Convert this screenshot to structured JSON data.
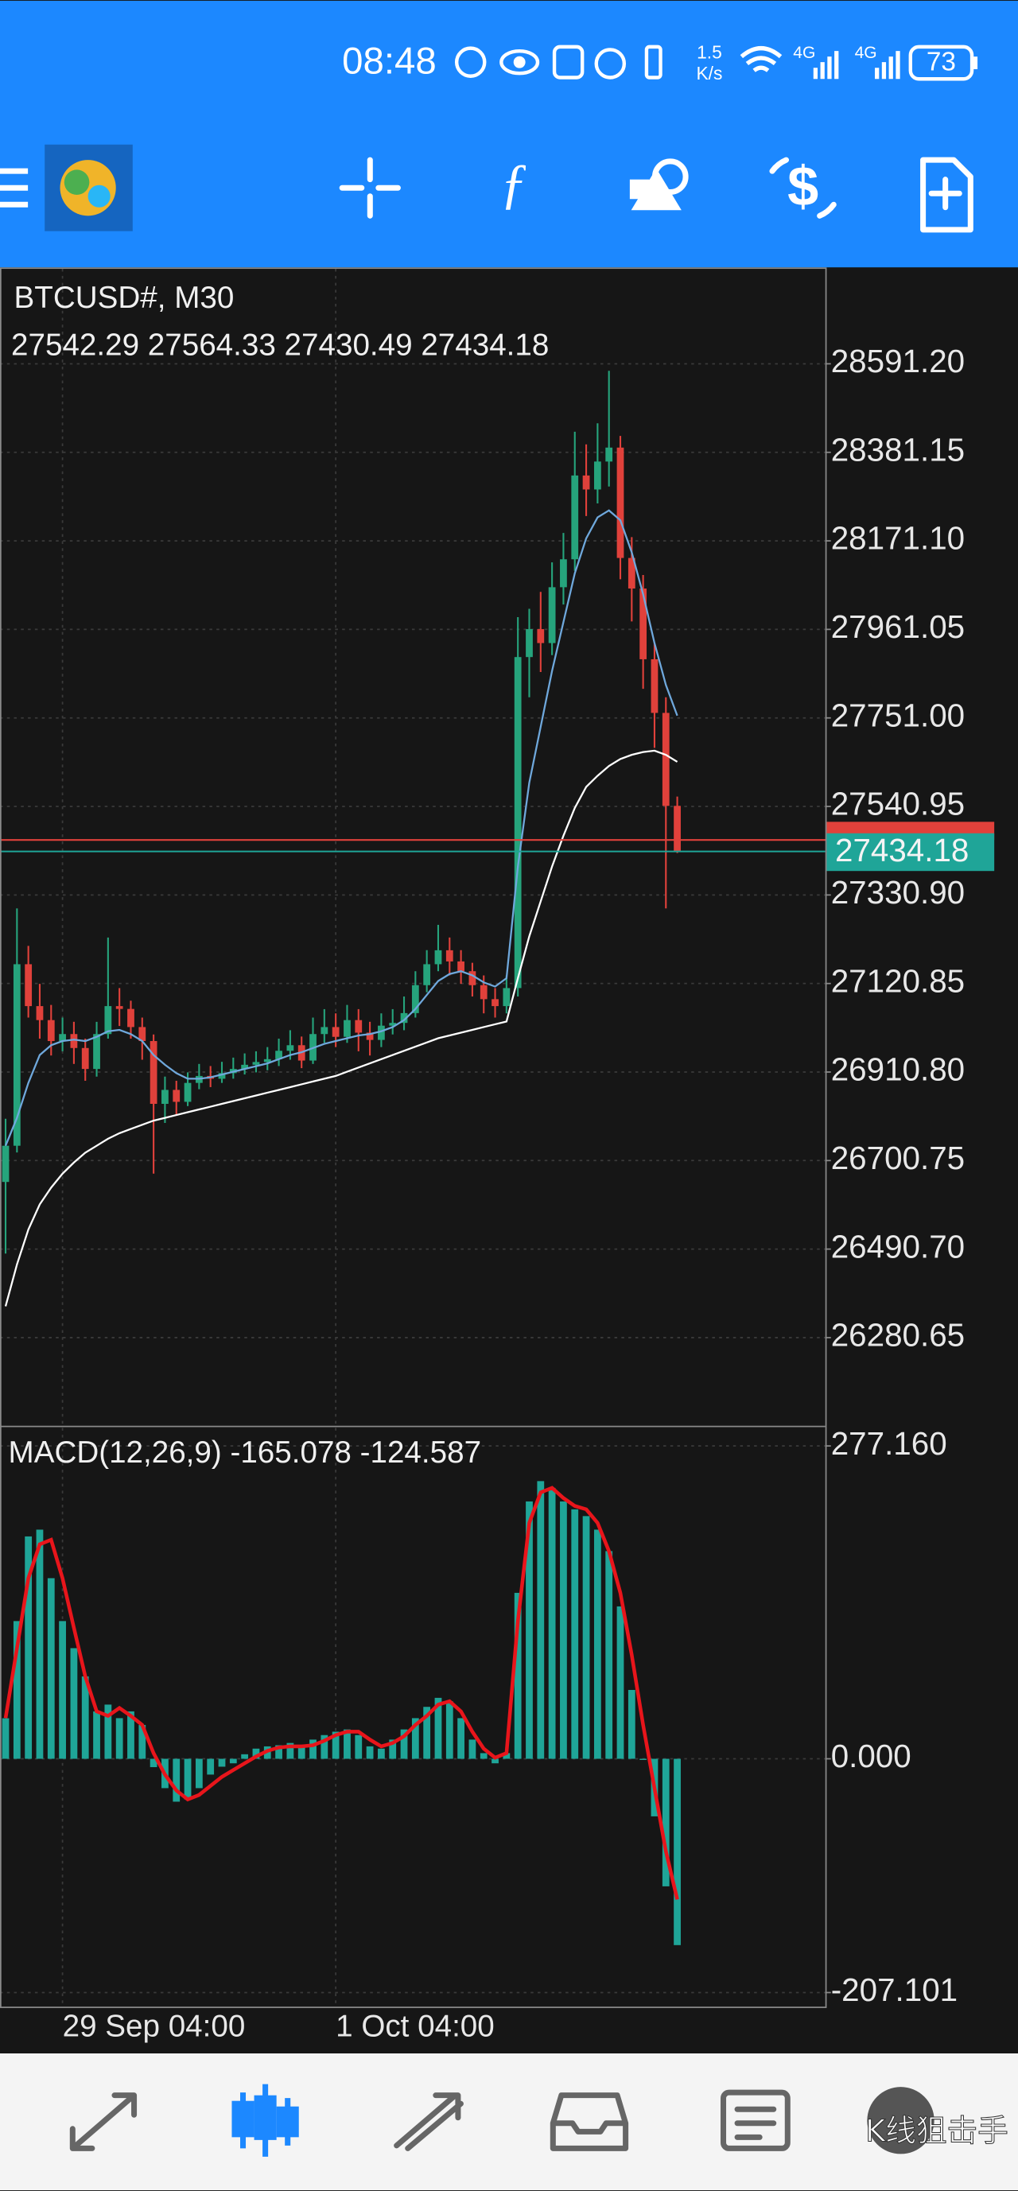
{
  "status_bar": {
    "time": "08:48",
    "net_speed": [
      "1.5",
      "K/s"
    ],
    "network": [
      "4G",
      "4G"
    ],
    "battery": "73"
  },
  "watermark": "K线狙击手",
  "chart_data": [
    {
      "type": "candlestick",
      "title": "BTCUSD#, M30",
      "subtitle": "27542.29 27564.33 27430.49 27434.18",
      "categories": [
        null,
        null,
        null,
        null,
        null,
        "29 Sep 04:00",
        null,
        null,
        null,
        null,
        null,
        null,
        null,
        null,
        null,
        null,
        null,
        null,
        null,
        null,
        null,
        null,
        null,
        null,
        null,
        null,
        null,
        null,
        null,
        "1 Oct 04:00",
        null,
        null,
        null,
        null,
        null,
        null,
        null,
        null,
        null,
        null,
        null,
        null,
        null,
        null,
        null,
        null,
        null,
        null,
        null,
        null,
        null,
        null,
        null,
        null,
        null,
        null,
        null,
        null,
        null,
        null
      ],
      "open": [
        26650.0,
        26735.9,
        27166.6,
        27067.2,
        27034.0,
        26984.3,
        27000.9,
        26967.8,
        26918.1,
        27000.9,
        27067.2,
        27060.5,
        27017.5,
        26984.3,
        26835.3,
        26868.4,
        26840.1,
        26885.0,
        26901.5,
        26894.9,
        26908.2,
        26918.1,
        26928.0,
        26934.6,
        26941.3,
        26961.2,
        26974.4,
        26938.0,
        27000.9,
        27017.5,
        26994.3,
        27034.0,
        27004.2,
        26987.0,
        27020.8,
        27027.4,
        27050.6,
        27116.9,
        27166.6,
        27199.7,
        27173.2,
        27150.0,
        27116.9,
        27083.7,
        27067.2,
        27110.0,
        27895.4,
        27961.7,
        27928.6,
        28061.1,
        28127.4,
        28326.2,
        28293.0,
        28359.3,
        28392.4,
        28130.5,
        28058.0,
        27890.2,
        27762.9,
        27542.29
      ],
      "high": [
        26800.0,
        27299.1,
        27210.0,
        27120.0,
        27070.0,
        27040.0,
        27030.0,
        26990.0,
        27030.0,
        27230.0,
        27110.0,
        27080.0,
        27040.0,
        27000.0,
        26900.0,
        26890.0,
        26910.0,
        26930.0,
        26925.0,
        26935.0,
        26945.0,
        26955.0,
        26960.0,
        26970.0,
        26990.0,
        27010.0,
        26995.0,
        27040.0,
        27060.0,
        27050.0,
        27070.0,
        27060.0,
        27030.0,
        27050.0,
        27060.0,
        27090.0,
        27150.0,
        27200.0,
        27260.0,
        27230.0,
        27200.0,
        27170.0,
        27140.0,
        27110.0,
        27140.0,
        27990.0,
        28010.0,
        28050.0,
        28120.0,
        28190.0,
        28430.0,
        28400.0,
        28450.0,
        28574.6,
        28420.0,
        28180.0,
        28090.0,
        27930.0,
        27800.0,
        27564.33
      ],
      "low": [
        26480.0,
        26720.0,
        27040.0,
        26990.0,
        26950.0,
        26960.0,
        26930.0,
        26890.0,
        26900.0,
        26990.0,
        27020.0,
        26990.0,
        26940.0,
        26669.6,
        26790.0,
        26810.0,
        26830.0,
        26870.0,
        26875.0,
        26885.0,
        26895.0,
        26905.0,
        26910.0,
        26915.0,
        26925.0,
        26940.0,
        26920.0,
        26930.0,
        26980.0,
        26970.0,
        26980.0,
        26960.0,
        26950.0,
        26970.0,
        27000.0,
        27010.0,
        27040.0,
        27100.0,
        27150.0,
        27140.0,
        27120.0,
        27090.0,
        27050.0,
        27040.0,
        27050.0,
        27090.0,
        27800.0,
        27860.0,
        27900.0,
        28020.0,
        28100.0,
        28230.0,
        28260.0,
        28300.0,
        28080.0,
        27980.0,
        27820.0,
        27680.0,
        27299.1,
        27430.49
      ],
      "close": [
        26735.9,
        27166.6,
        27067.2,
        27034.0,
        26984.3,
        27000.9,
        26967.8,
        26918.1,
        27000.9,
        27067.2,
        27060.5,
        27017.5,
        26984.3,
        26835.3,
        26868.4,
        26840.1,
        26885.0,
        26901.5,
        26894.9,
        26908.2,
        26918.1,
        26928.0,
        26934.6,
        26941.3,
        26961.2,
        26974.4,
        26938.0,
        27000.9,
        27017.5,
        26994.3,
        27034.0,
        27004.2,
        26987.0,
        27020.8,
        27027.4,
        27050.6,
        27116.9,
        27166.6,
        27199.7,
        27173.2,
        27150.0,
        27116.9,
        27083.7,
        27067.2,
        27110.0,
        27895.4,
        27961.7,
        27928.6,
        28061.1,
        28127.4,
        28326.2,
        28293.0,
        28359.3,
        28392.4,
        28130.5,
        28058.0,
        27890.2,
        27762.9,
        27542.29,
        27434.18
      ],
      "up_color": "#26a47c",
      "down_color": "#e0413b",
      "series": [
        {
          "color": "#6fa8dc",
          "values": [
            26735.9,
            26802.1,
            26885.0,
            26951.2,
            26974.4,
            26984.3,
            26987.7,
            26984.3,
            26994.3,
            27007.5,
            27010.8,
            27000.9,
            26984.3,
            26951.2,
            26928.0,
            26908.2,
            26894.9,
            26894.9,
            26898.2,
            26904.8,
            26911.5,
            26918.1,
            26924.7,
            26931.3,
            26941.3,
            26951.2,
            26957.8,
            26967.8,
            26977.7,
            26984.3,
            26990.9,
            26997.6,
            27000.9,
            27007.5,
            27017.5,
            27034.0,
            27060.5,
            27093.7,
            27126.8,
            27143.4,
            27150.0,
            27140.1,
            27123.5,
            27113.6,
            27133.4,
            27398.3,
            27597.3,
            27729.8,
            27862.3,
            27978.3,
            28094.2,
            28177.1,
            28226.8,
            28243.3,
            28220.1,
            28143.9,
            28044.5,
            27928.6,
            27829.2,
            27756.3
          ]
        },
        {
          "color": "#ffffff",
          "values": [
            26354.9,
            26454.3,
            26537.1,
            26596.8,
            26636.5,
            26669.6,
            26696.1,
            26719.4,
            26735.9,
            26752.5,
            26765.7,
            26775.7,
            26785.6,
            26795.5,
            26802.1,
            26808.8,
            26815.4,
            26822.0,
            26828.6,
            26835.3,
            26841.9,
            26848.5,
            26855.1,
            26861.8,
            26868.4,
            26875.0,
            26881.6,
            26888.3,
            26894.9,
            26901.5,
            26911.5,
            26921.4,
            26931.3,
            26941.3,
            26951.2,
            26961.2,
            26971.1,
            26981.0,
            26990.9,
            26997.6,
            27004.2,
            27010.8,
            27017.5,
            27024.1,
            27030.7,
            27133.4,
            27232.8,
            27315.6,
            27398.3,
            27471.3,
            27537.5,
            27587.3,
            27613.7,
            27636.9,
            27653.5,
            27663.4,
            27670.0,
            27673.3,
            27663.4,
            27646.8
          ]
        }
      ],
      "bid_line": {
        "value": 27434.18,
        "color": "#1fa598"
      },
      "ask_line": {
        "value": 27461.4,
        "color": "#e0413b"
      },
      "ylim": [
        26073.2,
        28816.5
      ],
      "yticks": [
        {
          "value": 28591.2,
          "label": "28591.20"
        },
        {
          "value": 28381.15,
          "label": "28381.15"
        },
        {
          "value": 28171.1,
          "label": "28171.10"
        },
        {
          "value": 27961.05,
          "label": "27961.05"
        },
        {
          "value": 27751.0,
          "label": "27751.00"
        },
        {
          "value": 27540.95,
          "label": "27540.95"
        },
        {
          "value": 27330.9,
          "label": "27330.90"
        },
        {
          "value": 27120.85,
          "label": "27120.85"
        },
        {
          "value": 26910.8,
          "label": "26910.80"
        },
        {
          "value": 26700.75,
          "label": "26700.75"
        },
        {
          "value": 26490.7,
          "label": "26490.70"
        },
        {
          "value": 26280.65,
          "label": "26280.65"
        }
      ],
      "grid": true
    },
    {
      "type": "macd",
      "title": "MACD(12,26,9) -165.078 -124.587",
      "series": [
        {
          "color": "#1fa598",
          "values": [
            35.9,
            122.0,
            197.0,
            203.0,
            160.0,
            122.0,
            98.0,
            73.0,
            42.0,
            48.0,
            36.0,
            42.0,
            30.0,
            -7.4,
            -26.0,
            -38.0,
            -36.0,
            -26.0,
            -14.0,
            -7.0,
            -4.0,
            4.0,
            9.0,
            11.0,
            12.0,
            14.0,
            11.0,
            17.0,
            21.0,
            24.0,
            26.0,
            21.0,
            11.0,
            9.0,
            17.0,
            26.0,
            36.0,
            46.0,
            54.0,
            51.0,
            36.0,
            17.0,
            5.0,
            -4.0,
            5.0,
            147.0,
            228.0,
            246.0,
            240.0,
            228.0,
            221.0,
            215.0,
            203.0,
            184.0,
            135.0,
            61.0,
            -1.0,
            -51.0,
            -113.0,
            -165.078
          ]
        },
        {
          "color": "#e8151b",
          "values": [
            36.0,
            98.0,
            160.0,
            190.0,
            194.0,
            160.0,
            116.0,
            73.0,
            42.0,
            38.0,
            45.0,
            38.0,
            30.0,
            5.0,
            -14.0,
            -28.0,
            -36.0,
            -32.0,
            -24.0,
            -16.0,
            -10.0,
            -4.0,
            2.0,
            7.0,
            10.0,
            11.0,
            11.0,
            12.0,
            16.0,
            21.0,
            24.0,
            24.0,
            17.0,
            11.0,
            14.0,
            20.0,
            30.0,
            38.0,
            48.0,
            51.0,
            42.0,
            24.0,
            9.0,
            1.0,
            5.0,
            122.0,
            209.0,
            236.0,
            240.0,
            231.0,
            224.0,
            221.0,
            209.0,
            184.0,
            147.0,
            92.0,
            30.0,
            -26.0,
            -82.0,
            -124.587
          ]
        }
      ],
      "ylim": [
        -220.2,
        293.2
      ],
      "yticks": [
        {
          "value": 277.16,
          "label": "277.160"
        },
        {
          "value": 0,
          "label": "0.000"
        },
        {
          "value": -207.101,
          "label": "-207.101"
        }
      ],
      "grid": true
    }
  ]
}
